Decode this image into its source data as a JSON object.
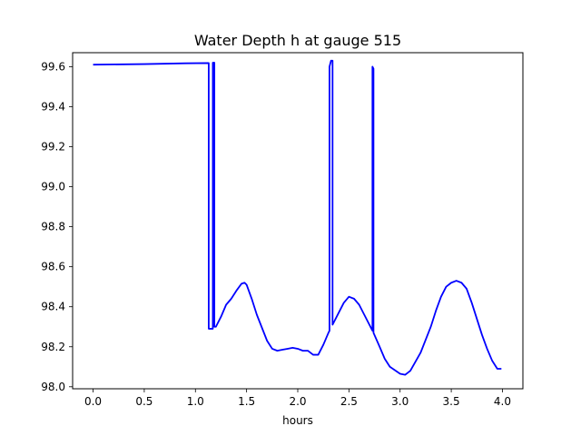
{
  "chart_data": {
    "type": "line",
    "title": "Water Depth h at gauge 515",
    "xlabel": "hours",
    "ylabel": "",
    "xlim": [
      -0.2,
      4.2
    ],
    "ylim": [
      97.99,
      99.67
    ],
    "xticks": [
      0.0,
      0.5,
      1.0,
      1.5,
      2.0,
      2.5,
      3.0,
      3.5,
      4.0
    ],
    "xtick_labels": [
      "0.0",
      "0.5",
      "1.0",
      "1.5",
      "2.0",
      "2.5",
      "3.0",
      "3.5",
      "4.0"
    ],
    "yticks": [
      98.0,
      98.2,
      98.4,
      98.6,
      98.8,
      99.0,
      99.2,
      99.4,
      99.6
    ],
    "ytick_labels": [
      "98.0",
      "98.2",
      "98.4",
      "98.6",
      "98.8",
      "99.0",
      "99.2",
      "99.4",
      "99.6"
    ],
    "grid": false,
    "series": [
      {
        "color": "#0000ff",
        "x": [
          0.0,
          0.5,
          0.9,
          1.13,
          1.13,
          1.15,
          1.17,
          1.17,
          1.185,
          1.185,
          1.2,
          1.25,
          1.3,
          1.35,
          1.4,
          1.45,
          1.48,
          1.5,
          1.55,
          1.6,
          1.7,
          1.75,
          1.8,
          1.85,
          1.9,
          1.95,
          2.0,
          2.05,
          2.1,
          2.15,
          2.2,
          2.25,
          2.3,
          2.31,
          2.31,
          2.325,
          2.34,
          2.34,
          2.36,
          2.4,
          2.45,
          2.5,
          2.55,
          2.6,
          2.65,
          2.7,
          2.73,
          2.73,
          2.74,
          2.74,
          2.8,
          2.85,
          2.9,
          3.0,
          3.05,
          3.1,
          3.2,
          3.3,
          3.35,
          3.4,
          3.45,
          3.5,
          3.55,
          3.6,
          3.65,
          3.7,
          3.8,
          3.85,
          3.9,
          3.95,
          3.99
        ],
        "y": [
          99.61,
          99.613,
          99.617,
          99.618,
          98.29,
          98.29,
          98.29,
          99.62,
          99.62,
          98.3,
          98.3,
          98.35,
          98.41,
          98.44,
          98.48,
          98.515,
          98.52,
          98.51,
          98.44,
          98.36,
          98.23,
          98.19,
          98.18,
          98.185,
          98.19,
          98.195,
          98.19,
          98.18,
          98.18,
          98.16,
          98.16,
          98.21,
          98.27,
          98.28,
          99.6,
          99.63,
          99.63,
          98.31,
          98.33,
          98.37,
          98.42,
          98.45,
          98.44,
          98.41,
          98.36,
          98.31,
          98.28,
          99.6,
          99.59,
          98.27,
          98.2,
          98.14,
          98.1,
          98.065,
          98.06,
          98.08,
          98.17,
          98.3,
          98.38,
          98.45,
          98.5,
          98.52,
          98.53,
          98.52,
          98.49,
          98.42,
          98.26,
          98.19,
          98.13,
          98.09,
          98.09
        ]
      }
    ]
  }
}
